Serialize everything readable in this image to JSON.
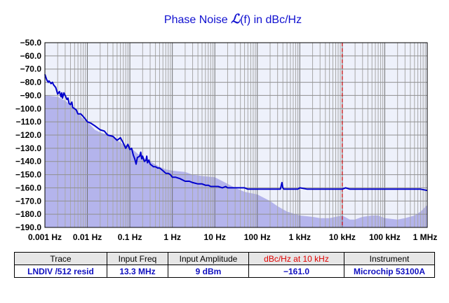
{
  "chart_data": {
    "type": "line",
    "title_parts": [
      "Phase  Noise ",
      "ℒ",
      "(f) in dBc/Hz"
    ],
    "x_scale": "log",
    "xlim": [
      0.001,
      1000000
    ],
    "ylim": [
      -190,
      -50
    ],
    "x_ticks": [
      {
        "value": 0.001,
        "label": "0.001 Hz"
      },
      {
        "value": 0.01,
        "label": "0.01 Hz"
      },
      {
        "value": 0.1,
        "label": "0.1 Hz"
      },
      {
        "value": 1,
        "label": "1 Hz"
      },
      {
        "value": 10,
        "label": "10 Hz"
      },
      {
        "value": 100,
        "label": "100 Hz"
      },
      {
        "value": 1000,
        "label": "1 kHz"
      },
      {
        "value": 10000,
        "label": "10 kHz"
      },
      {
        "value": 100000,
        "label": "100 kHz"
      },
      {
        "value": 1000000,
        "label": "1 MHz"
      }
    ],
    "y_ticks": [
      {
        "value": -50,
        "label": "−50.0"
      },
      {
        "value": -60,
        "label": "−60.0"
      },
      {
        "value": -70,
        "label": "−70.0"
      },
      {
        "value": -80,
        "label": "−80.0"
      },
      {
        "value": -90,
        "label": "−90.0"
      },
      {
        "value": -100,
        "label": "−100.0"
      },
      {
        "value": -110,
        "label": "−110.0"
      },
      {
        "value": -120,
        "label": "−120.0"
      },
      {
        "value": -130,
        "label": "−130.0"
      },
      {
        "value": -140,
        "label": "−140.0"
      },
      {
        "value": -150,
        "label": "−150.0"
      },
      {
        "value": -160,
        "label": "−160.0"
      },
      {
        "value": -170,
        "label": "−170.0"
      },
      {
        "value": -180,
        "label": "−180.0"
      },
      {
        "value": -190,
        "label": "−190.0"
      }
    ],
    "grid": true,
    "marker_x": 10000,
    "colors": {
      "trace": "#0000cc",
      "floor_fill": "#b4b4ec",
      "plot_bg": "#eef1fb",
      "marker": "#cc0000",
      "title": "#1010d0"
    },
    "series": [
      {
        "kind": "trace",
        "x": [
          0.001,
          0.0011,
          0.0012,
          0.00125,
          0.0014,
          0.0015,
          0.0016,
          0.0018,
          0.002,
          0.0022,
          0.0024,
          0.0025,
          0.0026,
          0.0028,
          0.003,
          0.0033,
          0.0035,
          0.0037,
          0.004,
          0.0043,
          0.0045,
          0.005,
          0.0055,
          0.006,
          0.007,
          0.008,
          0.009,
          0.01,
          0.012,
          0.015,
          0.02,
          0.025,
          0.03,
          0.04,
          0.05,
          0.06,
          0.07,
          0.08,
          0.09,
          0.1,
          0.11,
          0.12,
          0.13,
          0.14,
          0.15,
          0.17,
          0.18,
          0.19,
          0.2,
          0.22,
          0.24,
          0.25,
          0.26,
          0.28,
          0.3,
          0.33,
          0.36,
          0.4,
          0.45,
          0.5,
          0.55,
          0.6,
          0.65,
          0.7,
          0.8,
          0.9,
          1.0,
          1.2,
          1.5,
          2,
          2.5,
          3,
          4,
          5,
          6,
          7,
          8,
          10,
          12,
          15,
          18,
          20,
          25,
          30,
          40,
          50,
          60,
          80,
          100,
          150,
          200,
          300,
          350,
          380,
          400,
          420,
          450,
          500,
          600,
          700,
          800,
          900,
          1000,
          1500,
          2000,
          3000,
          5000,
          7000,
          10000,
          12000,
          15000,
          20000,
          50000,
          100000,
          150000,
          200000,
          300000,
          500000,
          700000,
          1000000
        ],
        "y": [
          -74,
          -78,
          -80,
          -79,
          -81,
          -80,
          -82,
          -84,
          -89,
          -87,
          -91,
          -88,
          -92,
          -88,
          -90,
          -93,
          -92,
          -96,
          -97,
          -95,
          -99,
          -100,
          -101,
          -104,
          -104,
          -106,
          -108,
          -110,
          -111,
          -113,
          -116,
          -117,
          -120,
          -121,
          -124,
          -122,
          -126,
          -130,
          -127,
          -131,
          -130,
          -135,
          -138,
          -142,
          -137,
          -136,
          -133,
          -138,
          -136,
          -140,
          -139,
          -136,
          -141,
          -139,
          -142,
          -143,
          -144,
          -144,
          -145,
          -145,
          -146,
          -147,
          -148,
          -149,
          -149,
          -150,
          -152,
          -152,
          -153,
          -155,
          -155,
          -156,
          -157,
          -157,
          -158,
          -158,
          -159,
          -159,
          -159,
          -160,
          -159,
          -160,
          -160,
          -160,
          -160,
          -160,
          -161,
          -161,
          -161,
          -161,
          -161,
          -161,
          -161,
          -156,
          -160,
          -161,
          -161,
          -161,
          -161,
          -161,
          -161,
          -161,
          -160,
          -161,
          -161,
          -161,
          -161,
          -161,
          -161,
          -160,
          -161,
          -161,
          -161,
          -161,
          -161,
          -161,
          -161,
          -161,
          -161,
          -162
        ]
      },
      {
        "kind": "floor",
        "x": [
          0.001,
          0.002,
          0.003,
          0.004,
          0.006,
          0.008,
          0.01,
          0.015,
          0.02,
          0.025,
          0.03,
          0.04,
          0.05,
          0.07,
          0.1,
          0.15,
          0.2,
          0.3,
          0.5,
          0.7,
          1,
          2,
          3,
          5,
          10,
          20,
          30,
          50,
          100,
          200,
          300,
          500,
          1000,
          2000,
          3000,
          5000,
          7000,
          10000,
          15000,
          20000,
          30000,
          50000,
          70000,
          100000,
          200000,
          300000,
          500000,
          700000,
          1000000
        ],
        "y": [
          -90,
          -91,
          -94,
          -97,
          -103,
          -108,
          -110,
          -116,
          -118,
          -119,
          -119,
          -121,
          -124,
          -127,
          -129,
          -134,
          -137,
          -140,
          -144,
          -146,
          -147,
          -148,
          -150,
          -151,
          -152,
          -157,
          -160,
          -163,
          -165,
          -170,
          -174,
          -178,
          -181,
          -182,
          -183,
          -183,
          -182,
          -181,
          -184,
          -184,
          -182,
          -181,
          -181,
          -183,
          -184,
          -183,
          -181,
          -178,
          -173
        ]
      }
    ]
  },
  "legend_table": {
    "headers": [
      "Trace",
      "Input Freq",
      "Input Amplitude",
      "dBc/Hz at 10 kHz",
      "Instrument"
    ],
    "row": [
      "LNDIV /512 resid",
      "13.3 MHz",
      "9 dBm",
      "−161.0",
      "Microchip 53100A"
    ]
  }
}
